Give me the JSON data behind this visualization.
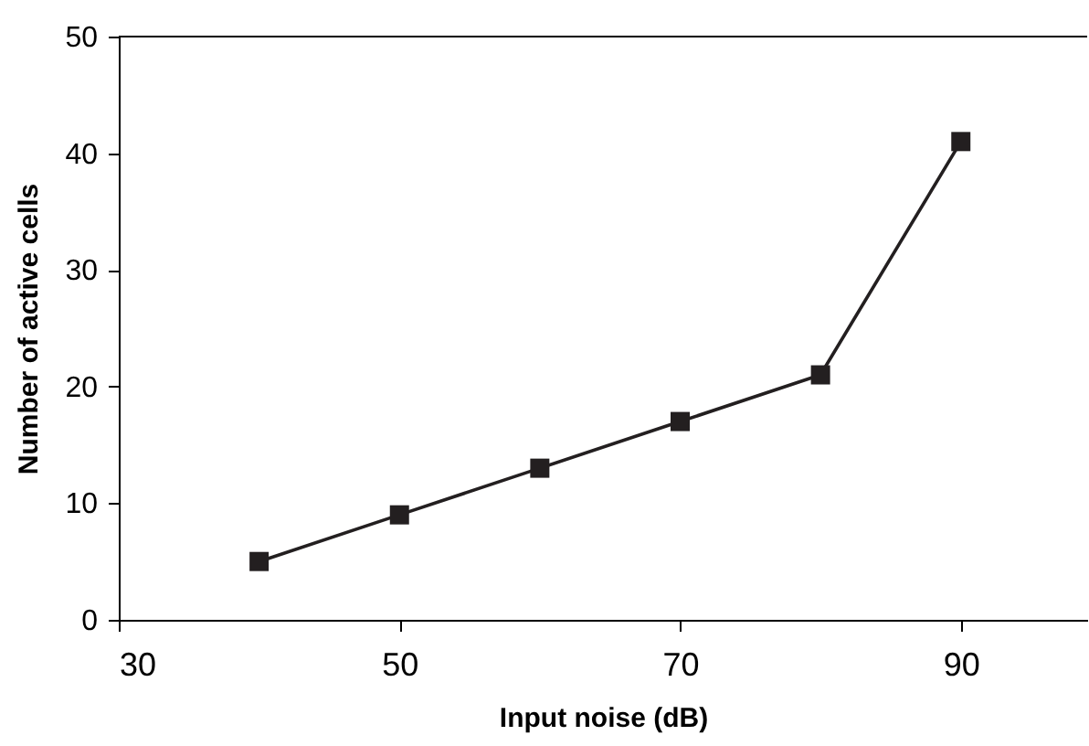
{
  "chart_data": {
    "type": "line",
    "xlabel": "Input noise (dB)",
    "ylabel": "Number of active cells",
    "x": [
      40,
      50,
      60,
      70,
      80,
      90
    ],
    "series": [
      {
        "color": "#231f20",
        "values": [
          5,
          9,
          13,
          17,
          21,
          41
        ]
      }
    ],
    "xlim": [
      30,
      99
    ],
    "xticks": [
      30,
      50,
      70,
      90
    ],
    "ylim": [
      0,
      50
    ],
    "yticks": [
      0,
      10,
      20,
      30,
      40,
      50
    ],
    "marker": "square",
    "line_style": "solid",
    "grid": false,
    "legend": false
  }
}
